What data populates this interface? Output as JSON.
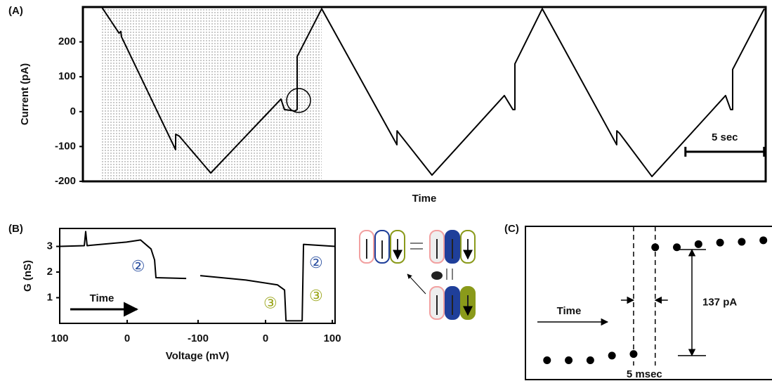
{
  "chart_data": [
    {
      "type": "line",
      "panel": "(A)",
      "ylabel": "Current (pA)",
      "xlabel": "Time",
      "xlim": [
        0,
        43.4
      ],
      "ylim": [
        -200,
        300
      ],
      "yticks": [
        -200,
        -100,
        0,
        100,
        200
      ],
      "series": [
        {
          "color": "#000000",
          "x": [
            1.21,
            2.3,
            2.41,
            2.45,
            5.89,
            5.9,
            6.12,
            8.13,
            12.59,
            12.81,
            13.48,
            13.62,
            13.62,
            15.18,
            19.96,
            19.97,
            20.09,
            22.19,
            26.79,
            27.33,
            27.46,
            27.46,
            29.2,
            33.93,
            33.94,
            34.11,
            36.17,
            40.85,
            41.17,
            41.3,
            41.3,
            43.31
          ],
          "values": [
            299,
            225,
            230,
            215,
            -109,
            -65,
            -70,
            -176,
            36,
            6,
            2,
            6,
            158,
            295,
            -95,
            -55,
            -62,
            -182,
            46,
            6,
            6,
            137,
            295,
            -95,
            -55,
            -62,
            -186,
            46,
            6,
            6,
            121,
            295
          ]
        }
      ],
      "highlight": [
        1.21,
        15.18
      ],
      "circle": {
        "x": 13.71,
        "y": 32
      },
      "scale_bar": {
        "label": "5 sec",
        "value": 5,
        "x": 38.3,
        "y": -115
      }
    },
    {
      "type": "line",
      "panel": "(B)",
      "ylabel": "G (nS)",
      "xlabel": "Voltage (mV)",
      "xlim": [
        0,
        404
      ],
      "ylim": [
        0,
        3.7
      ],
      "yticks": [
        1,
        2,
        3
      ],
      "xticks": [
        {
          "value": 0,
          "label": "100"
        },
        {
          "value": 99,
          "label": "0"
        },
        {
          "value": 203,
          "label": "-100"
        },
        {
          "value": 302,
          "label": "0"
        },
        {
          "value": 400,
          "label": "100"
        }
      ],
      "series": [
        {
          "color": "#000000",
          "x": [
            0,
            36.1,
            38.1,
            40.2,
            97.9,
            118.6,
            134,
            139.2,
            141.2,
            185.6,
            195,
            206.2,
            273.2,
            319.6,
            329.9,
            332,
            355.7,
            357.7,
            404
          ],
          "values": [
            3.0,
            3.03,
            3.58,
            3.03,
            3.17,
            3.25,
            2.9,
            2.47,
            1.78,
            1.75,
            null,
            1.86,
            1.69,
            1.5,
            1.3,
            0.1,
            0.1,
            3.08,
            3.0
          ]
        }
      ],
      "annotations": [
        {
          "text": "②",
          "x": 115,
          "y": 2.19,
          "color": "#2a4fa0"
        },
        {
          "text": "②",
          "x": 376,
          "y": 2.33,
          "color": "#2a4fa0"
        },
        {
          "text": "③",
          "x": 309,
          "y": 0.75,
          "color": "#9aa51a"
        },
        {
          "text": "③",
          "x": 376,
          "y": 1.03,
          "color": "#9aa51a"
        }
      ],
      "arrow_label": "Time"
    },
    {
      "type": "scatter",
      "panel": "(C)",
      "xlim": [
        -5,
        52
      ],
      "ylim": [
        -25,
        173
      ],
      "series": [
        {
          "color": "#000000",
          "x": [
            0,
            5,
            10,
            15,
            20,
            25,
            30,
            35,
            40,
            45,
            50
          ],
          "values": [
            0,
            0,
            0,
            6,
            8,
            146,
            146,
            150,
            152,
            153,
            155
          ]
        }
      ],
      "interval": {
        "label": "5 msec",
        "value": 5,
        "from": 20,
        "to": 25
      },
      "step": {
        "label": "137 pA",
        "value": 137,
        "from": 6,
        "to": 143
      },
      "arrow_label": "Time"
    }
  ]
}
